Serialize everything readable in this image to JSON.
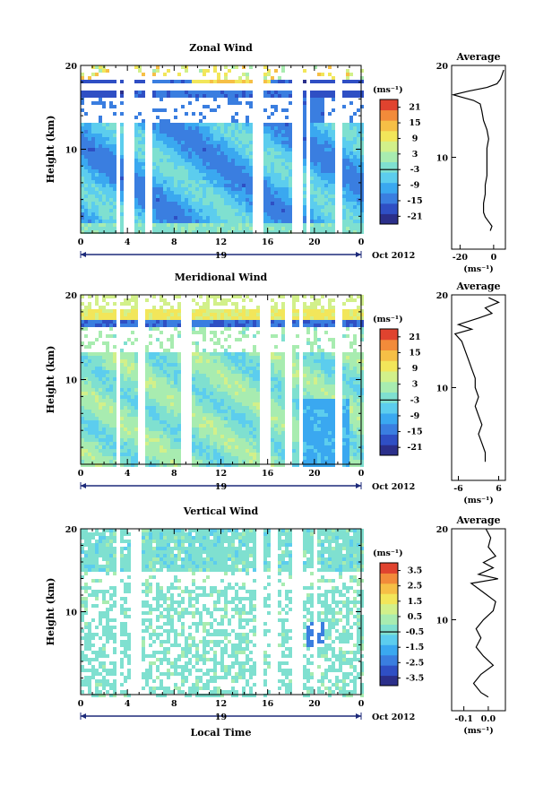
{
  "chart_data": [
    {
      "type": "heatmap",
      "title": "Zonal Wind",
      "ylabel": "Height (km)",
      "y_ticks": [
        "20",
        "10"
      ],
      "x_ticks": [
        "0",
        "4",
        "8",
        "12",
        "16",
        "20",
        "0"
      ],
      "day_label": "19",
      "month_label": "Oct 2012",
      "colorbar": {
        "unit": "(ms⁻¹)",
        "ticks": [
          "21",
          "15",
          "9",
          "3",
          "-3",
          "-9",
          "-15",
          "-21"
        ],
        "range": [
          -24,
          24
        ]
      },
      "profile": {
        "title": "Average",
        "x_ticks": [
          "-20",
          "0"
        ],
        "xlim": [
          -25,
          7
        ],
        "y_ticks": [
          "20",
          "10"
        ],
        "unit": "(ms⁻¹)",
        "points": [
          [
            -2,
            2
          ],
          [
            -1,
            2.5
          ],
          [
            -3,
            3
          ],
          [
            -5,
            3.5
          ],
          [
            -6,
            4
          ],
          [
            -6,
            5
          ],
          [
            -5,
            6
          ],
          [
            -5,
            7
          ],
          [
            -4,
            8
          ],
          [
            -4,
            9
          ],
          [
            -4,
            10
          ],
          [
            -4,
            11
          ],
          [
            -3,
            12
          ],
          [
            -4,
            13
          ],
          [
            -6,
            14
          ],
          [
            -7,
            15
          ],
          [
            -8,
            15.8
          ],
          [
            -12,
            16.2
          ],
          [
            -18,
            16.5
          ],
          [
            -24,
            16.8
          ],
          [
            -15,
            17.2
          ],
          [
            -4,
            17.6
          ],
          [
            2,
            18
          ],
          [
            4,
            18.5
          ],
          [
            5,
            19
          ],
          [
            6,
            19.5
          ]
        ]
      }
    },
    {
      "type": "heatmap",
      "title": "Meridional Wind",
      "ylabel": "Height (km)",
      "y_ticks": [
        "20",
        "10"
      ],
      "x_ticks": [
        "0",
        "4",
        "8",
        "12",
        "16",
        "20",
        "0"
      ],
      "day_label": "19",
      "month_label": "Oct 2012",
      "colorbar": {
        "unit": "(ms⁻¹)",
        "ticks": [
          "21",
          "15",
          "9",
          "3",
          "-3",
          "-9",
          "-15",
          "-21"
        ],
        "range": [
          -24,
          24
        ]
      },
      "profile": {
        "title": "Average",
        "x_ticks": [
          "-6",
          "6"
        ],
        "xlim": [
          -8,
          8
        ],
        "y_ticks": [
          "20",
          "10"
        ],
        "unit": "(ms⁻¹)",
        "points": [
          [
            2,
            2
          ],
          [
            2,
            3
          ],
          [
            1,
            4
          ],
          [
            0,
            5
          ],
          [
            1,
            6
          ],
          [
            0,
            7
          ],
          [
            -1,
            8
          ],
          [
            0,
            9
          ],
          [
            -1,
            10
          ],
          [
            -1,
            11
          ],
          [
            -2,
            12
          ],
          [
            -3,
            13
          ],
          [
            -4,
            14
          ],
          [
            -5,
            15
          ],
          [
            -7,
            15.8
          ],
          [
            -2,
            16.3
          ],
          [
            -6,
            16.8
          ],
          [
            0,
            17.5
          ],
          [
            4,
            18
          ],
          [
            2,
            18.6
          ],
          [
            6,
            19.2
          ],
          [
            3,
            19.7
          ]
        ]
      }
    },
    {
      "type": "heatmap",
      "title": "Vertical Wind",
      "xlabel": "Local Time",
      "ylabel": "Height (km)",
      "y_ticks": [
        "20",
        "10"
      ],
      "x_ticks": [
        "0",
        "4",
        "8",
        "12",
        "16",
        "20",
        "0"
      ],
      "day_label": "19",
      "month_label": "Oct 2012",
      "colorbar": {
        "unit": "(ms⁻¹)",
        "ticks": [
          "3.5",
          "2.5",
          "1.5",
          "0.5",
          "-0.5",
          "-1.5",
          "-2.5",
          "-3.5"
        ],
        "range": [
          -4,
          4
        ]
      },
      "profile": {
        "title": "Average",
        "x_ticks": [
          "-0.1",
          "0.0"
        ],
        "xlim": [
          -0.15,
          0.07
        ],
        "y_ticks": [
          "20",
          "10"
        ],
        "unit": "(ms⁻¹)",
        "points": [
          [
            0,
            1.5
          ],
          [
            -0.03,
            2
          ],
          [
            -0.06,
            3
          ],
          [
            -0.03,
            4
          ],
          [
            0.02,
            5
          ],
          [
            -0.02,
            6
          ],
          [
            -0.05,
            7
          ],
          [
            -0.03,
            8
          ],
          [
            -0.05,
            9
          ],
          [
            -0.02,
            10
          ],
          [
            0.02,
            11
          ],
          [
            0.03,
            12
          ],
          [
            -0.02,
            13
          ],
          [
            -0.07,
            14
          ],
          [
            0.04,
            14.5
          ],
          [
            -0.04,
            15
          ],
          [
            0.02,
            15.7
          ],
          [
            -0.02,
            16.3
          ],
          [
            0.03,
            17
          ],
          [
            0,
            18
          ],
          [
            0.01,
            19
          ],
          [
            -0.01,
            20
          ]
        ]
      }
    }
  ]
}
